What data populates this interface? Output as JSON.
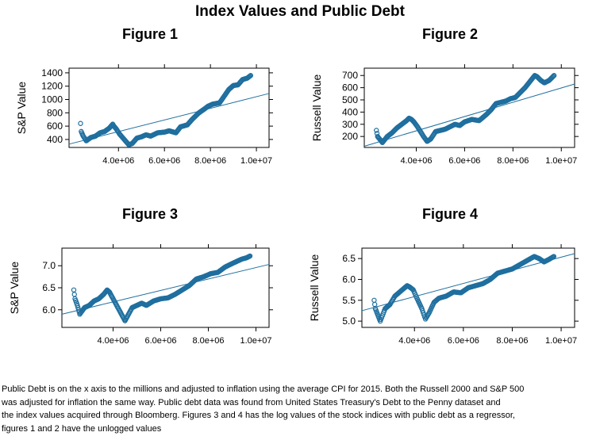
{
  "main_title": "Index Values and Public Debt",
  "caption_lines": [
    "Public Debt is on the x axis to the millions and adjusted to inflation using the average CPI for 2015. Both the Russell 2000 and S&P 500",
    "was adjusted for inflation the same way. Public debt data was found from United States Treasury's Debt to the Penny dataset and",
    "the index values acquired through Bloomberg. Figures 3 and 4 has the log values of the stock indices with public debt as a regressor,",
    "figures 1 and 2 have the unlogged values"
  ],
  "colors": {
    "points": "#1f6f9f",
    "fit_line": "#1f6f9f",
    "axis": "#000000"
  },
  "chart_data": [
    {
      "type": "scatter",
      "title": "Figure 1",
      "ylabel": "S&P Value",
      "xlabel": "",
      "xlim": [
        1850000,
        10550000
      ],
      "ylim": [
        280,
        1470
      ],
      "xticks": [
        4000000,
        6000000,
        8000000,
        10000000
      ],
      "xtick_labels": [
        "4.0e+06",
        "6.0e+06",
        "8.0e+06",
        "1.0e+07"
      ],
      "yticks": [
        400,
        600,
        800,
        1000,
        1200,
        1400
      ],
      "ytick_labels": [
        "400",
        "600",
        "800",
        "1000",
        "1200",
        "1400"
      ],
      "points": [
        [
          2350000,
          640
        ],
        [
          2380000,
          520
        ],
        [
          2450000,
          460
        ],
        [
          2600000,
          380
        ],
        [
          2800000,
          430
        ],
        [
          3000000,
          450
        ],
        [
          3200000,
          500
        ],
        [
          3400000,
          520
        ],
        [
          3600000,
          570
        ],
        [
          3750000,
          630
        ],
        [
          3800000,
          600
        ],
        [
          3900000,
          560
        ],
        [
          4050000,
          480
        ],
        [
          4300000,
          380
        ],
        [
          4450000,
          320
        ],
        [
          4600000,
          340
        ],
        [
          4800000,
          420
        ],
        [
          5000000,
          440
        ],
        [
          5200000,
          470
        ],
        [
          5400000,
          450
        ],
        [
          5700000,
          500
        ],
        [
          6000000,
          510
        ],
        [
          6200000,
          530
        ],
        [
          6500000,
          500
        ],
        [
          6700000,
          590
        ],
        [
          7000000,
          620
        ],
        [
          7200000,
          700
        ],
        [
          7500000,
          800
        ],
        [
          7750000,
          860
        ],
        [
          7900000,
          900
        ],
        [
          8100000,
          930
        ],
        [
          8400000,
          950
        ],
        [
          8600000,
          1050
        ],
        [
          8800000,
          1150
        ],
        [
          9000000,
          1210
        ],
        [
          9200000,
          1220
        ],
        [
          9400000,
          1300
        ],
        [
          9600000,
          1320
        ],
        [
          9750000,
          1360
        ]
      ],
      "fit_line": [
        [
          1850000,
          330
        ],
        [
          10550000,
          1090
        ]
      ],
      "grid": false
    },
    {
      "type": "scatter",
      "title": "Figure 2",
      "ylabel": "Russell Value",
      "xlabel": "",
      "xlim": [
        1850000,
        10550000
      ],
      "ylim": [
        110,
        760
      ],
      "xticks": [
        4000000,
        6000000,
        8000000,
        10000000
      ],
      "xtick_labels": [
        "4.0e+06",
        "6.0e+06",
        "8.0e+06",
        "1.0e+07"
      ],
      "yticks": [
        200,
        300,
        400,
        500,
        600,
        700
      ],
      "ytick_labels": [
        "200",
        "300",
        "400",
        "500",
        "600",
        "700"
      ],
      "points": [
        [
          2350000,
          250
        ],
        [
          2400000,
          200
        ],
        [
          2500000,
          175
        ],
        [
          2600000,
          150
        ],
        [
          2800000,
          200
        ],
        [
          3000000,
          230
        ],
        [
          3200000,
          270
        ],
        [
          3400000,
          300
        ],
        [
          3600000,
          330
        ],
        [
          3700000,
          350
        ],
        [
          3800000,
          340
        ],
        [
          3900000,
          320
        ],
        [
          4050000,
          280
        ],
        [
          4300000,
          200
        ],
        [
          4450000,
          160
        ],
        [
          4600000,
          180
        ],
        [
          4800000,
          240
        ],
        [
          5000000,
          250
        ],
        [
          5200000,
          260
        ],
        [
          5400000,
          280
        ],
        [
          5600000,
          300
        ],
        [
          5800000,
          290
        ],
        [
          6000000,
          320
        ],
        [
          6300000,
          340
        ],
        [
          6600000,
          330
        ],
        [
          6900000,
          380
        ],
        [
          7100000,
          420
        ],
        [
          7300000,
          470
        ],
        [
          7500000,
          480
        ],
        [
          7700000,
          490
        ],
        [
          7900000,
          510
        ],
        [
          8100000,
          520
        ],
        [
          8300000,
          560
        ],
        [
          8500000,
          600
        ],
        [
          8700000,
          650
        ],
        [
          8900000,
          700
        ],
        [
          9000000,
          690
        ],
        [
          9150000,
          660
        ],
        [
          9300000,
          640
        ],
        [
          9500000,
          660
        ],
        [
          9700000,
          700
        ]
      ],
      "fit_line": [
        [
          1850000,
          120
        ],
        [
          10550000,
          630
        ]
      ],
      "grid": false
    },
    {
      "type": "scatter",
      "title": "Figure 3",
      "ylabel": "S&P Value",
      "xlabel": "",
      "xlim": [
        1850000,
        10550000
      ],
      "ylim": [
        5.6,
        7.4
      ],
      "xticks": [
        4000000,
        6000000,
        8000000,
        10000000
      ],
      "xtick_labels": [
        "4.0e+06",
        "6.0e+06",
        "8.0e+06",
        "1.0e+07"
      ],
      "yticks": [
        6.0,
        6.5,
        7.0
      ],
      "ytick_labels": [
        "6.0",
        "6.5",
        "7.0"
      ],
      "points": [
        [
          2350000,
          6.45
        ],
        [
          2400000,
          6.25
        ],
        [
          2500000,
          6.1
        ],
        [
          2600000,
          5.9
        ],
        [
          2800000,
          6.05
        ],
        [
          3000000,
          6.1
        ],
        [
          3200000,
          6.2
        ],
        [
          3400000,
          6.25
        ],
        [
          3600000,
          6.35
        ],
        [
          3750000,
          6.45
        ],
        [
          3850000,
          6.4
        ],
        [
          3950000,
          6.3
        ],
        [
          4100000,
          6.15
        ],
        [
          4300000,
          5.95
        ],
        [
          4500000,
          5.75
        ],
        [
          4600000,
          5.85
        ],
        [
          4800000,
          6.05
        ],
        [
          5000000,
          6.1
        ],
        [
          5200000,
          6.15
        ],
        [
          5400000,
          6.1
        ],
        [
          5700000,
          6.2
        ],
        [
          6000000,
          6.25
        ],
        [
          6300000,
          6.27
        ],
        [
          6600000,
          6.35
        ],
        [
          6900000,
          6.45
        ],
        [
          7200000,
          6.55
        ],
        [
          7500000,
          6.7
        ],
        [
          7800000,
          6.75
        ],
        [
          8100000,
          6.82
        ],
        [
          8400000,
          6.85
        ],
        [
          8700000,
          6.97
        ],
        [
          9000000,
          7.05
        ],
        [
          9200000,
          7.1
        ],
        [
          9400000,
          7.15
        ],
        [
          9600000,
          7.18
        ],
        [
          9750000,
          7.22
        ]
      ],
      "fit_line": [
        [
          1850000,
          5.9
        ],
        [
          10550000,
          7.03
        ]
      ],
      "grid": false
    },
    {
      "type": "scatter",
      "title": "Figure 4",
      "ylabel": "Russell Value",
      "xlabel": "",
      "xlim": [
        1850000,
        10550000
      ],
      "ylim": [
        4.85,
        6.75
      ],
      "xticks": [
        4000000,
        6000000,
        8000000,
        10000000
      ],
      "xtick_labels": [
        "4.0e+06",
        "6.0e+06",
        "8.0e+06",
        "1.0e+07"
      ],
      "yticks": [
        5.0,
        5.5,
        6.0,
        6.5
      ],
      "ytick_labels": [
        "5.0",
        "5.5",
        "6.0",
        "6.5"
      ],
      "points": [
        [
          2350000,
          5.5
        ],
        [
          2400000,
          5.3
        ],
        [
          2500000,
          5.15
        ],
        [
          2600000,
          5.0
        ],
        [
          2800000,
          5.3
        ],
        [
          3000000,
          5.4
        ],
        [
          3200000,
          5.6
        ],
        [
          3400000,
          5.7
        ],
        [
          3600000,
          5.8
        ],
        [
          3700000,
          5.85
        ],
        [
          3800000,
          5.82
        ],
        [
          3950000,
          5.75
        ],
        [
          4100000,
          5.55
        ],
        [
          4300000,
          5.3
        ],
        [
          4450000,
          5.05
        ],
        [
          4600000,
          5.2
        ],
        [
          4800000,
          5.45
        ],
        [
          5000000,
          5.55
        ],
        [
          5300000,
          5.6
        ],
        [
          5600000,
          5.7
        ],
        [
          5900000,
          5.68
        ],
        [
          6200000,
          5.8
        ],
        [
          6500000,
          5.85
        ],
        [
          6800000,
          5.9
        ],
        [
          7100000,
          6.0
        ],
        [
          7400000,
          6.15
        ],
        [
          7700000,
          6.2
        ],
        [
          8000000,
          6.25
        ],
        [
          8300000,
          6.35
        ],
        [
          8600000,
          6.45
        ],
        [
          8900000,
          6.55
        ],
        [
          9100000,
          6.5
        ],
        [
          9300000,
          6.42
        ],
        [
          9500000,
          6.48
        ],
        [
          9700000,
          6.55
        ]
      ],
      "fit_line": [
        [
          1850000,
          5.25
        ],
        [
          10550000,
          6.62
        ]
      ],
      "grid": false
    }
  ]
}
